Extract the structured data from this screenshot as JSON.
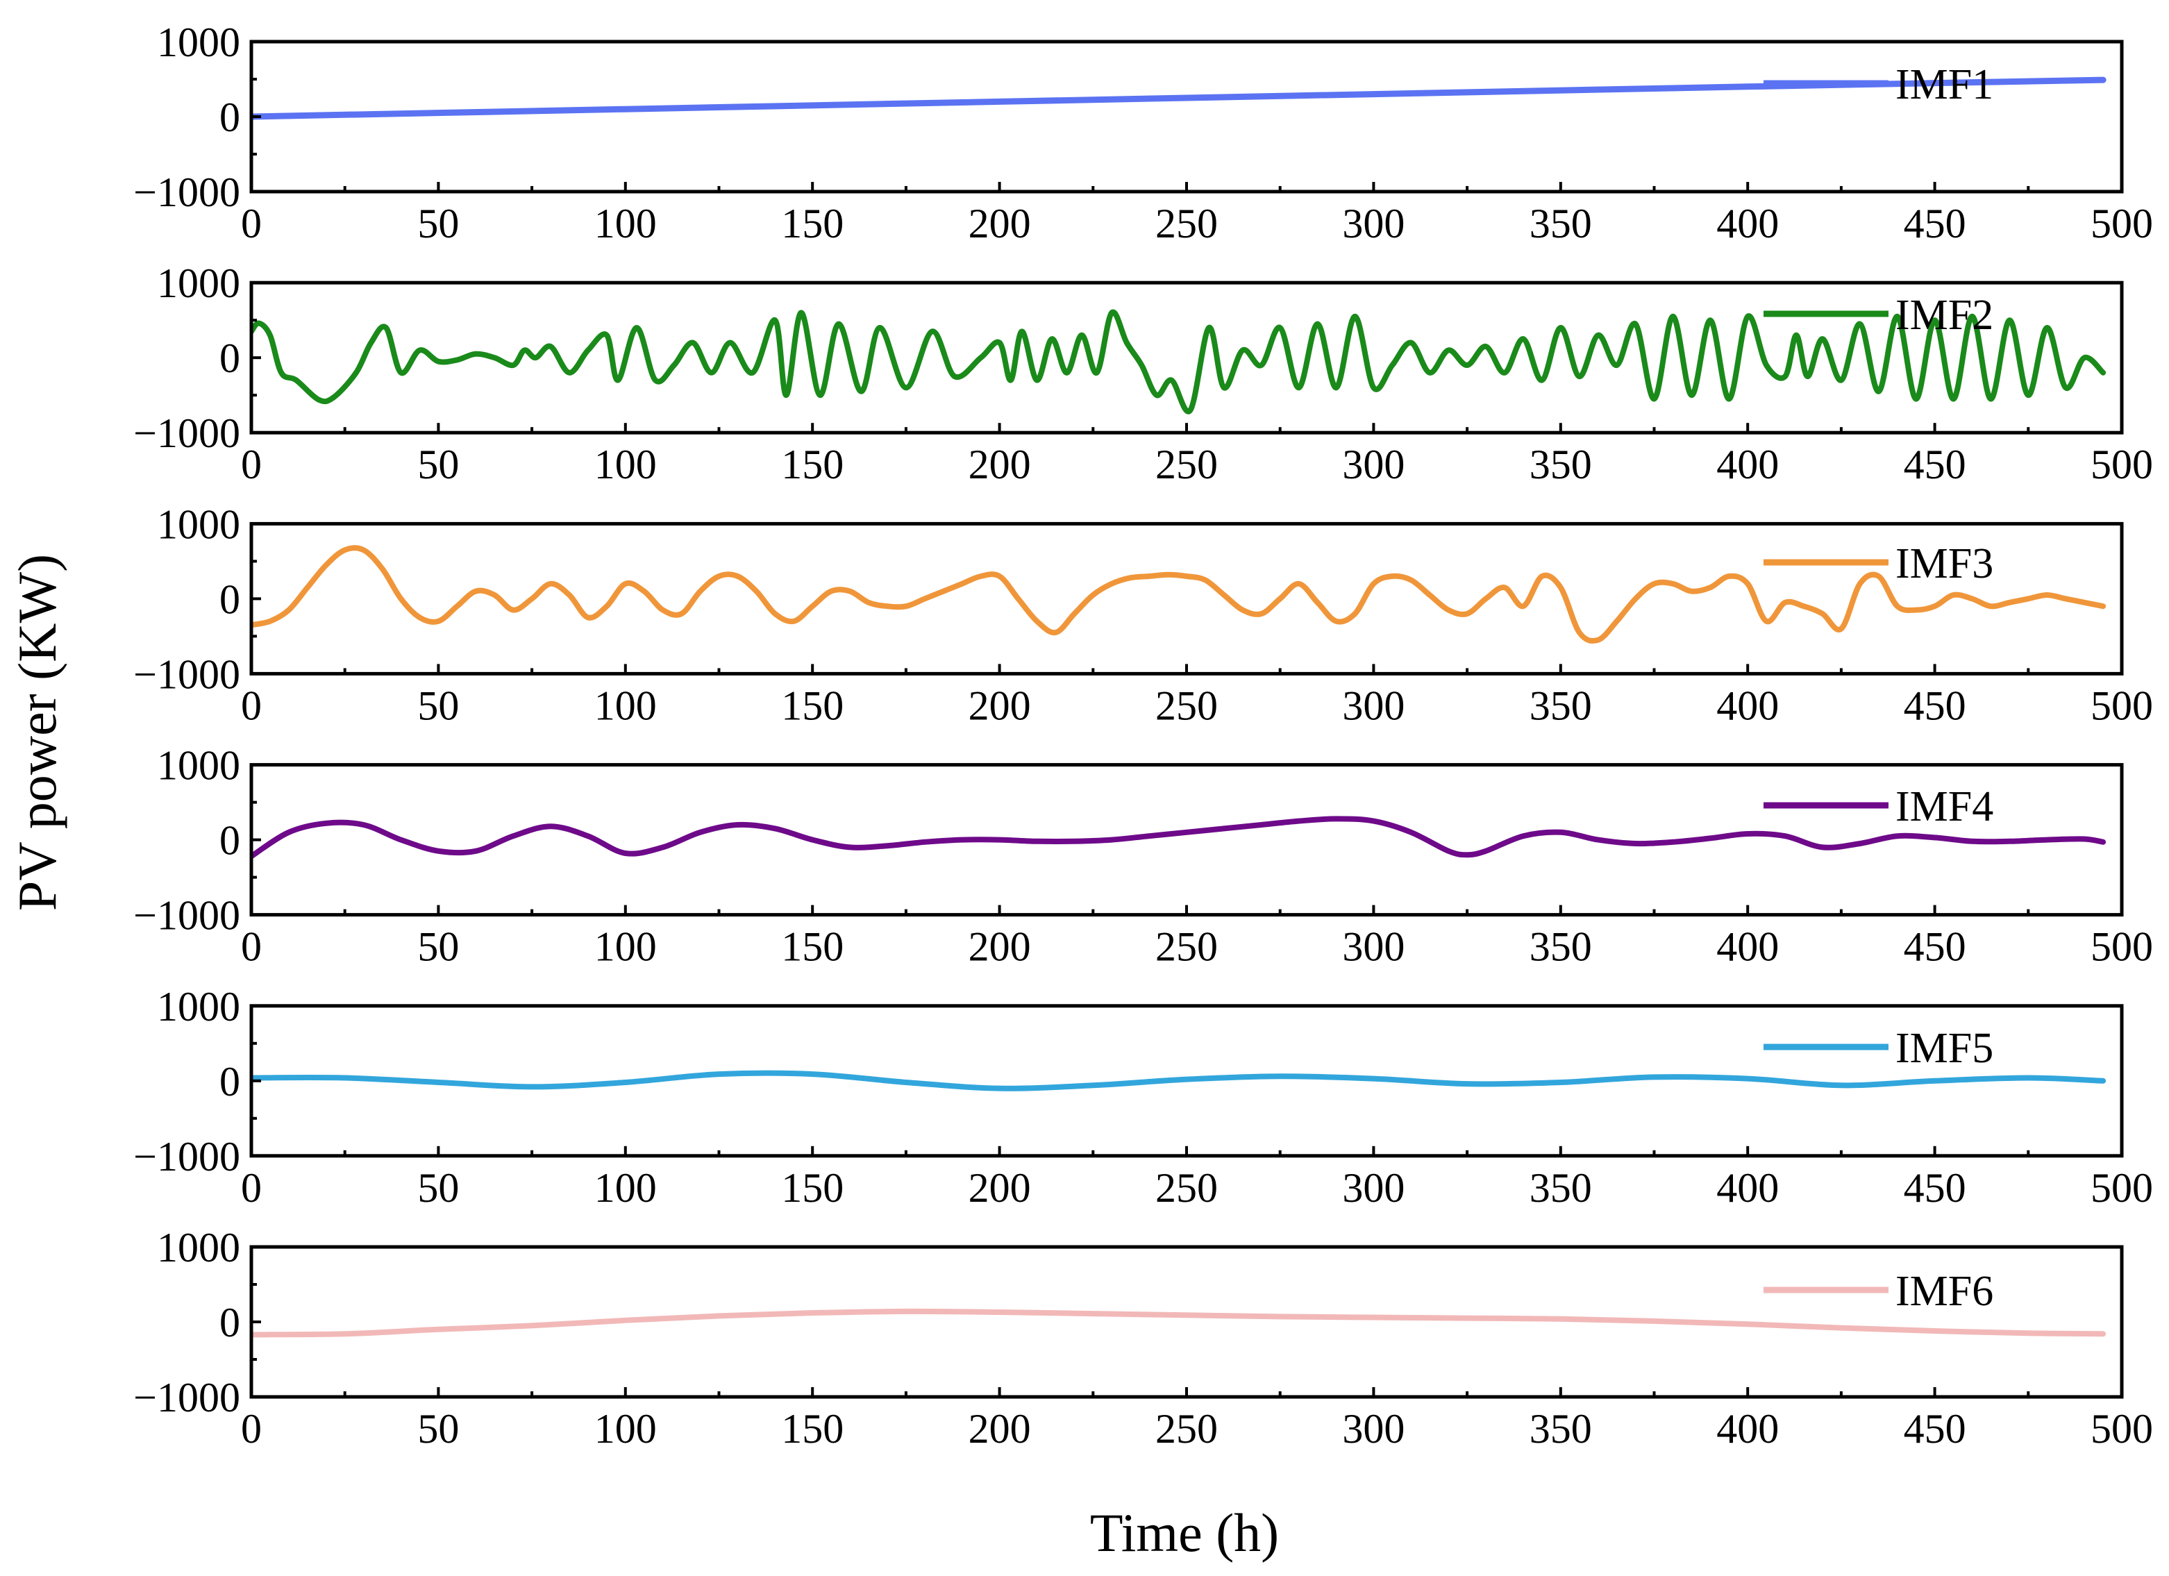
{
  "chart_data": {
    "type": "line",
    "ylabel": "PV power (KW)",
    "xlabel": "Time (h)",
    "xlim": [
      0,
      500
    ],
    "ylim": [
      -1000,
      1000
    ],
    "xticks": [
      0,
      50,
      100,
      150,
      200,
      250,
      300,
      350,
      400,
      450,
      500
    ],
    "yticks": [
      -1000,
      0,
      1000
    ],
    "xtick_labels": [
      "0",
      "50",
      "100",
      "150",
      "200",
      "250",
      "300",
      "350",
      "400",
      "450",
      "500"
    ],
    "ytick_labels": [
      "−1000",
      "0",
      "1000"
    ],
    "legend_position": "top-right",
    "series": [
      {
        "name": "IMF1",
        "color": "#5b73f2",
        "x": [
          0,
          100,
          200,
          300,
          400,
          495
        ],
        "values": [
          0,
          100,
          200,
          300,
          400,
          490
        ]
      },
      {
        "name": "IMF2",
        "color": "#1a8a1a",
        "x": [
          0,
          2,
          5,
          8,
          12,
          18,
          22,
          28,
          32,
          36,
          40,
          45,
          50,
          55,
          60,
          65,
          70,
          73,
          76,
          80,
          85,
          90,
          95,
          98,
          103,
          108,
          113,
          118,
          123,
          128,
          134,
          140,
          143,
          147,
          152,
          157,
          163,
          168,
          175,
          182,
          188,
          195,
          200,
          203,
          206,
          210,
          214,
          218,
          222,
          226,
          230,
          234,
          238,
          242,
          246,
          251,
          256,
          260,
          265,
          270,
          275,
          280,
          285,
          290,
          295,
          300,
          305,
          310,
          315,
          320,
          325,
          330,
          335,
          340,
          345,
          350,
          355,
          360,
          365,
          370,
          375,
          380,
          385,
          390,
          395,
          400,
          405,
          410,
          413,
          416,
          420,
          425,
          430,
          435,
          440,
          445,
          450,
          455,
          460,
          465,
          470,
          475,
          480,
          485,
          490,
          495
        ],
        "values": [
          350,
          460,
          300,
          -200,
          -300,
          -560,
          -530,
          -200,
          200,
          400,
          -200,
          100,
          -50,
          -30,
          50,
          0,
          -100,
          100,
          0,
          150,
          -200,
          100,
          300,
          -300,
          400,
          -300,
          -100,
          200,
          -200,
          200,
          -200,
          500,
          -500,
          600,
          -500,
          450,
          -450,
          400,
          -400,
          350,
          -250,
          0,
          200,
          -300,
          350,
          -300,
          250,
          -200,
          300,
          -200,
          600,
          200,
          -100,
          -500,
          -300,
          -700,
          400,
          -400,
          100,
          -100,
          400,
          -400,
          450,
          -400,
          550,
          -400,
          -100,
          200,
          -200,
          100,
          -100,
          150,
          -200,
          250,
          -300,
          400,
          -250,
          300,
          -100,
          450,
          -550,
          550,
          -500,
          500,
          -550,
          550,
          -100,
          -250,
          300,
          -250,
          250,
          -300,
          450,
          -450,
          550,
          -550,
          500,
          -550,
          550,
          -550,
          500,
          -500,
          400,
          -400,
          0,
          -200
        ]
      },
      {
        "name": "IMF3",
        "color": "#f0963a",
        "x": [
          0,
          5,
          10,
          15,
          20,
          25,
          30,
          35,
          40,
          45,
          50,
          55,
          60,
          65,
          70,
          75,
          80,
          85,
          90,
          95,
          100,
          105,
          110,
          115,
          120,
          125,
          130,
          135,
          140,
          145,
          150,
          155,
          160,
          165,
          170,
          175,
          180,
          185,
          190,
          195,
          200,
          205,
          210,
          215,
          220,
          225,
          230,
          235,
          240,
          245,
          250,
          255,
          260,
          265,
          270,
          275,
          280,
          285,
          290,
          295,
          300,
          305,
          310,
          315,
          320,
          325,
          330,
          335,
          340,
          345,
          350,
          355,
          360,
          365,
          370,
          375,
          380,
          385,
          390,
          395,
          400,
          405,
          410,
          415,
          420,
          425,
          430,
          435,
          440,
          445,
          450,
          455,
          460,
          465,
          470,
          475,
          480,
          485,
          490,
          495
        ],
        "values": [
          -350,
          -300,
          -150,
          150,
          450,
          650,
          650,
          400,
          0,
          -250,
          -300,
          -100,
          100,
          50,
          -150,
          0,
          200,
          50,
          -250,
          -100,
          200,
          100,
          -150,
          -200,
          100,
          300,
          300,
          100,
          -200,
          -300,
          -100,
          100,
          100,
          -50,
          -100,
          -100,
          0,
          100,
          200,
          300,
          300,
          0,
          -300,
          -450,
          -200,
          50,
          200,
          280,
          300,
          320,
          300,
          250,
          50,
          -150,
          -200,
          0,
          200,
          -50,
          -300,
          -200,
          200,
          300,
          250,
          50,
          -150,
          -200,
          0,
          150,
          -100,
          300,
          150,
          -450,
          -550,
          -300,
          0,
          200,
          200,
          100,
          150,
          300,
          200,
          -300,
          -50,
          -100,
          -200,
          -400,
          200,
          300,
          -100,
          -150,
          -100,
          50,
          0,
          -100,
          -50,
          0,
          50,
          0,
          -50,
          -100
        ]
      },
      {
        "name": "IMF4",
        "color": "#6e0a8a",
        "x": [
          0,
          10,
          20,
          30,
          40,
          50,
          60,
          70,
          80,
          90,
          100,
          110,
          120,
          130,
          140,
          150,
          160,
          170,
          180,
          190,
          200,
          210,
          220,
          230,
          240,
          250,
          260,
          270,
          280,
          290,
          300,
          310,
          320,
          325,
          330,
          340,
          350,
          360,
          370,
          380,
          390,
          400,
          410,
          420,
          430,
          440,
          450,
          460,
          470,
          480,
          490,
          495
        ],
        "values": [
          -220,
          100,
          220,
          200,
          0,
          -150,
          -150,
          50,
          180,
          50,
          -180,
          -100,
          100,
          200,
          150,
          0,
          -100,
          -80,
          -30,
          0,
          0,
          -20,
          -20,
          0,
          50,
          100,
          150,
          200,
          250,
          280,
          250,
          100,
          -150,
          -200,
          -150,
          50,
          100,
          0,
          -50,
          -30,
          20,
          80,
          50,
          -100,
          -50,
          50,
          30,
          -20,
          -20,
          0,
          10,
          -30
        ]
      },
      {
        "name": "IMF5",
        "color": "#32a6dc",
        "x": [
          0,
          25,
          50,
          75,
          100,
          125,
          150,
          175,
          200,
          225,
          250,
          275,
          300,
          325,
          350,
          375,
          400,
          425,
          450,
          475,
          495
        ],
        "values": [
          40,
          40,
          -20,
          -80,
          -20,
          90,
          90,
          -20,
          -100,
          -60,
          20,
          60,
          30,
          -40,
          -20,
          50,
          30,
          -60,
          0,
          40,
          0
        ]
      },
      {
        "name": "IMF6",
        "color": "#f2b8b8",
        "x": [
          0,
          25,
          50,
          75,
          100,
          125,
          150,
          175,
          200,
          225,
          250,
          275,
          300,
          325,
          350,
          375,
          400,
          425,
          450,
          475,
          495
        ],
        "values": [
          -170,
          -160,
          -100,
          -50,
          20,
          80,
          120,
          140,
          130,
          110,
          90,
          70,
          60,
          50,
          40,
          10,
          -30,
          -80,
          -120,
          -150,
          -160
        ]
      }
    ]
  }
}
